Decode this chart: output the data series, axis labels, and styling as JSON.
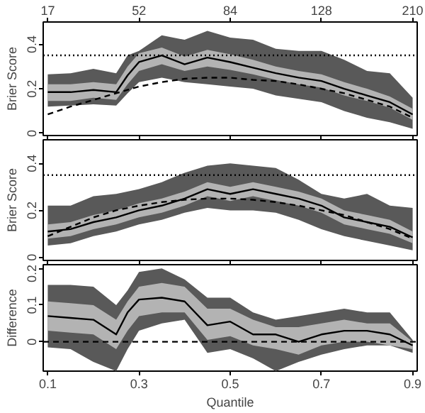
{
  "chart_data": [
    {
      "type": "line",
      "ylabel": "Brier Score",
      "xlim": [
        0.09,
        0.91
      ],
      "ylim": [
        -0.01,
        0.5
      ],
      "yticks": [
        0,
        0.2,
        0.4
      ],
      "xticks": [
        0.1,
        0.3,
        0.5,
        0.7,
        0.9
      ],
      "tick_labels": "y",
      "annotations": [
        "17",
        "52",
        "84",
        "128",
        "210"
      ],
      "x": [
        0.1,
        0.15,
        0.2,
        0.25,
        0.275,
        0.3,
        0.35,
        0.4,
        0.45,
        0.5,
        0.55,
        0.6,
        0.65,
        0.7,
        0.75,
        0.8,
        0.85,
        0.9
      ],
      "series": [
        {
          "color": "#595959",
          "values": [
            null,
            null,
            null,
            null,
            null,
            null,
            null,
            null,
            null,
            null,
            null,
            null,
            null,
            null,
            null,
            null,
            null,
            null
          ],
          "lower": [
            0.12,
            0.125,
            0.13,
            0.125,
            0.18,
            0.23,
            0.25,
            0.23,
            0.22,
            0.21,
            0.2,
            0.17,
            0.155,
            0.14,
            0.1,
            0.07,
            0.05,
            0.02
          ],
          "upper": [
            0.265,
            0.27,
            0.29,
            0.27,
            0.35,
            0.37,
            0.44,
            0.42,
            0.46,
            0.43,
            0.42,
            0.38,
            0.37,
            0.37,
            0.33,
            0.28,
            0.27,
            0.16
          ]
        },
        {
          "color": "#b3b3b3",
          "values": [
            null,
            null,
            null,
            null,
            null,
            null,
            null,
            null,
            null,
            null,
            null,
            null,
            null,
            null,
            null,
            null,
            null,
            null
          ],
          "lower": [
            0.145,
            0.145,
            0.16,
            0.15,
            0.22,
            0.28,
            0.31,
            0.28,
            0.3,
            0.285,
            0.265,
            0.24,
            0.22,
            0.205,
            0.17,
            0.145,
            0.115,
            0.06
          ],
          "upper": [
            0.22,
            0.22,
            0.23,
            0.22,
            0.3,
            0.36,
            0.385,
            0.345,
            0.375,
            0.355,
            0.33,
            0.3,
            0.28,
            0.265,
            0.23,
            0.2,
            0.165,
            0.11
          ]
        },
        {
          "color": "#000000",
          "line_style": "solid",
          "values": [
            0.185,
            0.185,
            0.195,
            0.185,
            0.26,
            0.32,
            0.35,
            0.31,
            0.34,
            0.32,
            0.295,
            0.27,
            0.25,
            0.235,
            0.2,
            0.17,
            0.14,
            0.085
          ]
        },
        {
          "color": "#000000",
          "line_style": "dashed",
          "values": [
            0.085,
            0.12,
            0.15,
            0.18,
            0.195,
            0.21,
            0.23,
            0.245,
            0.25,
            0.25,
            0.24,
            0.235,
            0.22,
            0.2,
            0.18,
            0.15,
            0.12,
            0.07
          ]
        }
      ],
      "ref_lines": [
        {
          "axis": "y",
          "value": 0.35,
          "line_style": "dotted",
          "color": "#000000"
        }
      ]
    },
    {
      "type": "line",
      "ylabel": "Brier Score",
      "xlim": [
        0.09,
        0.91
      ],
      "ylim": [
        -0.013,
        0.5
      ],
      "yticks": [
        0,
        0.2,
        0.4
      ],
      "xticks": [
        0.1,
        0.3,
        0.5,
        0.7,
        0.9
      ],
      "tick_labels": "y",
      "x": [
        0.1,
        0.15,
        0.2,
        0.25,
        0.3,
        0.35,
        0.4,
        0.45,
        0.5,
        0.55,
        0.6,
        0.65,
        0.7,
        0.75,
        0.8,
        0.85,
        0.9
      ],
      "series": [
        {
          "color": "#595959",
          "values": [
            null,
            null,
            null,
            null,
            null,
            null,
            null,
            null,
            null,
            null,
            null,
            null,
            null,
            null,
            null,
            null,
            null
          ],
          "lower": [
            0.05,
            0.06,
            0.09,
            0.11,
            0.14,
            0.16,
            0.19,
            0.21,
            0.2,
            0.2,
            0.19,
            0.16,
            0.12,
            0.09,
            0.07,
            0.05,
            0.03
          ],
          "upper": [
            0.22,
            0.22,
            0.26,
            0.27,
            0.29,
            0.32,
            0.36,
            0.39,
            0.4,
            0.39,
            0.38,
            0.33,
            0.27,
            0.25,
            0.27,
            0.22,
            0.21
          ]
        },
        {
          "color": "#b3b3b3",
          "values": [
            null,
            null,
            null,
            null,
            null,
            null,
            null,
            null,
            null,
            null,
            null,
            null,
            null,
            null,
            null,
            null,
            null
          ],
          "lower": [
            0.08,
            0.09,
            0.12,
            0.14,
            0.17,
            0.19,
            0.22,
            0.26,
            0.24,
            0.26,
            0.24,
            0.22,
            0.19,
            0.14,
            0.12,
            0.1,
            0.06
          ],
          "upper": [
            0.14,
            0.15,
            0.18,
            0.2,
            0.23,
            0.25,
            0.28,
            0.32,
            0.3,
            0.32,
            0.3,
            0.28,
            0.25,
            0.2,
            0.18,
            0.16,
            0.11
          ]
        },
        {
          "color": "#000000",
          "line_style": "solid",
          "values": [
            0.11,
            0.12,
            0.15,
            0.17,
            0.2,
            0.22,
            0.25,
            0.29,
            0.27,
            0.29,
            0.27,
            0.25,
            0.22,
            0.17,
            0.15,
            0.13,
            0.085
          ]
        },
        {
          "color": "#000000",
          "line_style": "dashed",
          "values": [
            0.09,
            0.13,
            0.17,
            0.2,
            0.22,
            0.235,
            0.245,
            0.25,
            0.25,
            0.245,
            0.235,
            0.22,
            0.2,
            0.18,
            0.15,
            0.12,
            0.08
          ]
        }
      ],
      "ref_lines": [
        {
          "axis": "y",
          "value": 0.35,
          "line_style": "dotted",
          "color": "#000000"
        }
      ]
    },
    {
      "type": "line",
      "ylabel": "Difference",
      "xlabel": "Quantile",
      "xlim": [
        0.09,
        0.91
      ],
      "ylim": [
        -0.08,
        0.21
      ],
      "yticks": [
        0,
        0.1,
        0.2
      ],
      "xticks": [
        0.1,
        0.3,
        0.5,
        0.7,
        0.9
      ],
      "x": [
        0.1,
        0.15,
        0.2,
        0.25,
        0.275,
        0.3,
        0.35,
        0.4,
        0.45,
        0.5,
        0.55,
        0.6,
        0.65,
        0.7,
        0.75,
        0.8,
        0.85,
        0.9
      ],
      "series": [
        {
          "color": "#595959",
          "values": [
            null,
            null,
            null,
            null,
            null,
            null,
            null,
            null,
            null,
            null,
            null,
            null,
            null,
            null,
            null,
            null,
            null,
            null
          ],
          "lower": [
            -0.015,
            -0.02,
            -0.055,
            -0.08,
            -0.02,
            0.03,
            0.05,
            0.06,
            -0.03,
            -0.02,
            -0.045,
            -0.08,
            -0.055,
            -0.035,
            -0.02,
            -0.01,
            -0.01,
            -0.03
          ],
          "upper": [
            0.155,
            0.155,
            0.15,
            0.1,
            0.14,
            0.19,
            0.2,
            0.17,
            0.12,
            0.12,
            0.08,
            0.06,
            0.07,
            0.08,
            0.09,
            0.08,
            0.08,
            0.005
          ]
        },
        {
          "color": "#b3b3b3",
          "values": [
            null,
            null,
            null,
            null,
            null,
            null,
            null,
            null,
            null,
            null,
            null,
            null,
            null,
            null,
            null,
            null,
            null,
            null
          ],
          "lower": [
            0.03,
            0.025,
            0.02,
            -0.02,
            0.03,
            0.07,
            0.08,
            0.08,
            0.005,
            0.015,
            -0.01,
            -0.02,
            -0.035,
            -0.01,
            0.0,
            0.0,
            -0.01,
            -0.02
          ],
          "upper": [
            0.11,
            0.105,
            0.1,
            0.06,
            0.11,
            0.15,
            0.16,
            0.15,
            0.09,
            0.09,
            0.06,
            0.04,
            0.04,
            0.05,
            0.06,
            0.05,
            0.05,
            0.0
          ]
        },
        {
          "color": "#000000",
          "line_style": "solid",
          "values": [
            0.07,
            0.065,
            0.06,
            0.02,
            0.08,
            0.115,
            0.12,
            0.11,
            0.045,
            0.055,
            0.02,
            0.02,
            0.0,
            0.02,
            0.03,
            0.03,
            0.02,
            -0.01
          ]
        }
      ],
      "ref_lines": [
        {
          "axis": "y",
          "value": 0,
          "line_style": "dashed",
          "color": "#000000"
        }
      ]
    }
  ]
}
